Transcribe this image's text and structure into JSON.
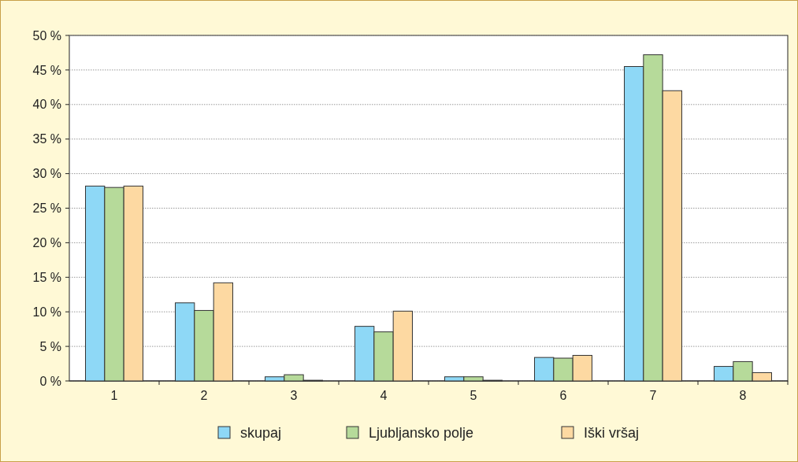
{
  "chart_data": {
    "type": "bar",
    "categories": [
      "1",
      "2",
      "3",
      "4",
      "5",
      "6",
      "7",
      "8"
    ],
    "series": [
      {
        "name": "skupaj",
        "color": "#8ed8f6",
        "values": [
          28.2,
          11.3,
          0.6,
          7.9,
          0.6,
          3.4,
          45.5,
          2.1
        ]
      },
      {
        "name": "Ljubljansko polje",
        "color": "#b6da9a",
        "values": [
          28.0,
          10.2,
          0.9,
          7.1,
          0.6,
          3.3,
          47.2,
          2.8
        ]
      },
      {
        "name": "Iški vršaj",
        "color": "#fdd9a2",
        "values": [
          28.2,
          14.2,
          0.1,
          10.1,
          0.1,
          3.7,
          42.0,
          1.2
        ]
      }
    ],
    "ylim": [
      0,
      50
    ],
    "yticks": [
      {
        "value": 0,
        "label": "0 %"
      },
      {
        "value": 5,
        "label": "5 %"
      },
      {
        "value": 10,
        "label": "10 %"
      },
      {
        "value": 15,
        "label": "15 %"
      },
      {
        "value": 20,
        "label": "20 %"
      },
      {
        "value": 25,
        "label": "25 %"
      },
      {
        "value": 30,
        "label": "30 %"
      },
      {
        "value": 35,
        "label": "35 %"
      },
      {
        "value": 40,
        "label": "40 %"
      },
      {
        "value": 45,
        "label": "45 %"
      },
      {
        "value": 50,
        "label": "50 %"
      }
    ],
    "grid": "y",
    "legend": "bottom"
  }
}
